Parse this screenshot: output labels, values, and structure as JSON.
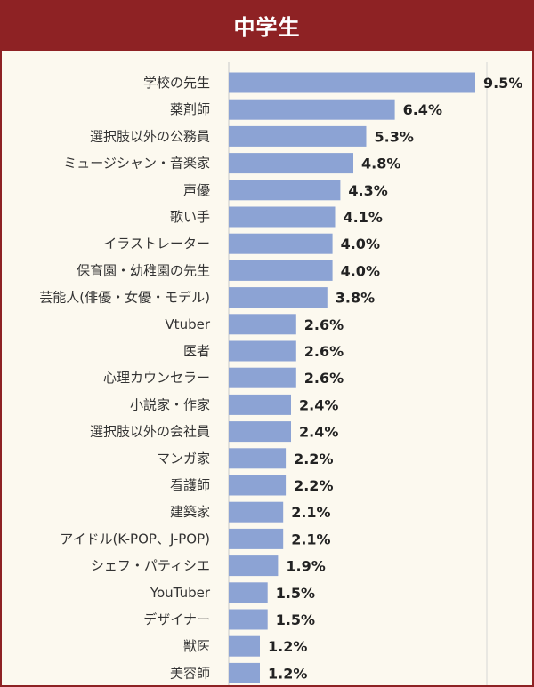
{
  "header": {
    "title": "中学生"
  },
  "colors": {
    "header_bg": "#8e2224",
    "bar": "#8ca3d4",
    "background": "#fcf9ef",
    "border": "#8e2224"
  },
  "chart_data": {
    "type": "bar",
    "orientation": "horizontal",
    "title": "",
    "xlabel": "",
    "ylabel": "",
    "xlim": [
      0,
      9.5
    ],
    "grid": false,
    "categories": [
      "学校の先生",
      "薬剤師",
      "選択肢以外の公務員",
      "ミュージシャン・音楽家",
      "声優",
      "歌い手",
      "イラストレーター",
      "保育園・幼稚園の先生",
      "芸能人(俳優・女優・モデル)",
      "Vtuber",
      "医者",
      "心理カウンセラー",
      "小説家・作家",
      "選択肢以外の会社員",
      "マンガ家",
      "看護師",
      "建築家",
      "アイドル(K-POP、J-POP)",
      "シェフ・パティシエ",
      "YouTuber",
      "デザイナー",
      "獣医",
      "美容師"
    ],
    "values": [
      9.5,
      6.4,
      5.3,
      4.8,
      4.3,
      4.1,
      4.0,
      4.0,
      3.8,
      2.6,
      2.6,
      2.6,
      2.4,
      2.4,
      2.2,
      2.2,
      2.1,
      2.1,
      1.9,
      1.5,
      1.5,
      1.2,
      1.2
    ],
    "value_labels": [
      "9.5%",
      "6.4%",
      "5.3%",
      "4.8%",
      "4.3%",
      "4.1%",
      "4.0%",
      "4.0%",
      "3.8%",
      "2.6%",
      "2.6%",
      "2.6%",
      "2.4%",
      "2.4%",
      "2.2%",
      "2.2%",
      "2.1%",
      "2.1%",
      "1.9%",
      "1.5%",
      "1.5%",
      "1.2%",
      "1.2%"
    ]
  }
}
